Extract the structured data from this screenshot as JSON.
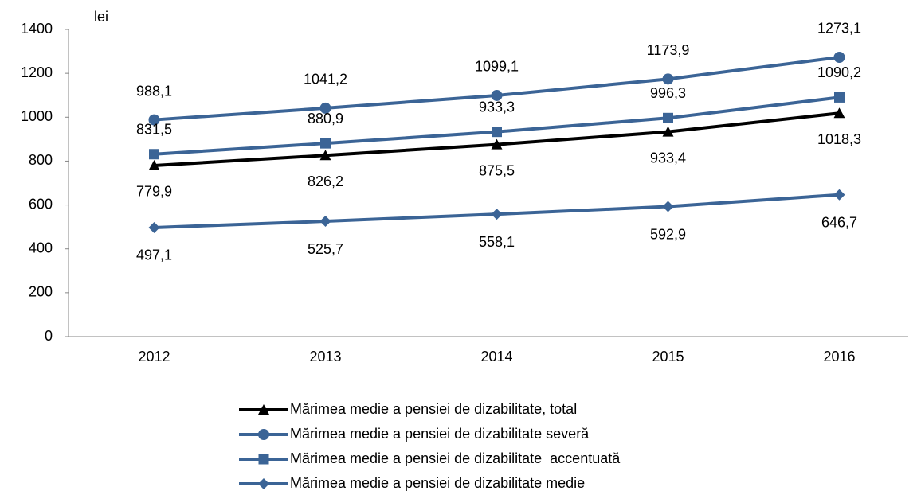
{
  "chart_data": {
    "type": "line",
    "y_unit_label": "lei",
    "categories": [
      "2012",
      "2013",
      "2014",
      "2015",
      "2016"
    ],
    "ylim": [
      0,
      1400
    ],
    "yticks": [
      0,
      200,
      400,
      600,
      800,
      1000,
      1200,
      1400
    ],
    "series": [
      {
        "name": "Mărimea medie a pensiei de dizabilitate, total",
        "color": "#000000",
        "marker": "triangle",
        "values": [
          779.9,
          826.2,
          875.5,
          933.4,
          1018.3
        ],
        "value_labels": [
          "779,9",
          "826,2",
          "875,5",
          "933,4",
          "1018,3"
        ]
      },
      {
        "name": "Mărimea medie a pensiei de dizabilitate severă",
        "color": "#3b6496",
        "marker": "circle",
        "values": [
          988.1,
          1041.2,
          1099.1,
          1173.9,
          1273.1
        ],
        "value_labels": [
          "988,1",
          "1041,2",
          "1099,1",
          "1173,9",
          "1273,1"
        ]
      },
      {
        "name": "Mărimea medie a pensiei de dizabilitate  accentuată",
        "color": "#3b6496",
        "marker": "square",
        "values": [
          831.5,
          880.9,
          933.3,
          996.3,
          1090.2
        ],
        "value_labels": [
          "831,5",
          "880,9",
          "933,3",
          "996,3",
          "1090,2"
        ]
      },
      {
        "name": "Mărimea medie a pensiei de dizabilitate medie",
        "color": "#3b6496",
        "marker": "diamond",
        "values": [
          497.1,
          525.7,
          558.1,
          592.9,
          646.7
        ],
        "value_labels": [
          "497,1",
          "525,7",
          "558,1",
          "592,9",
          "646,7"
        ]
      }
    ]
  }
}
